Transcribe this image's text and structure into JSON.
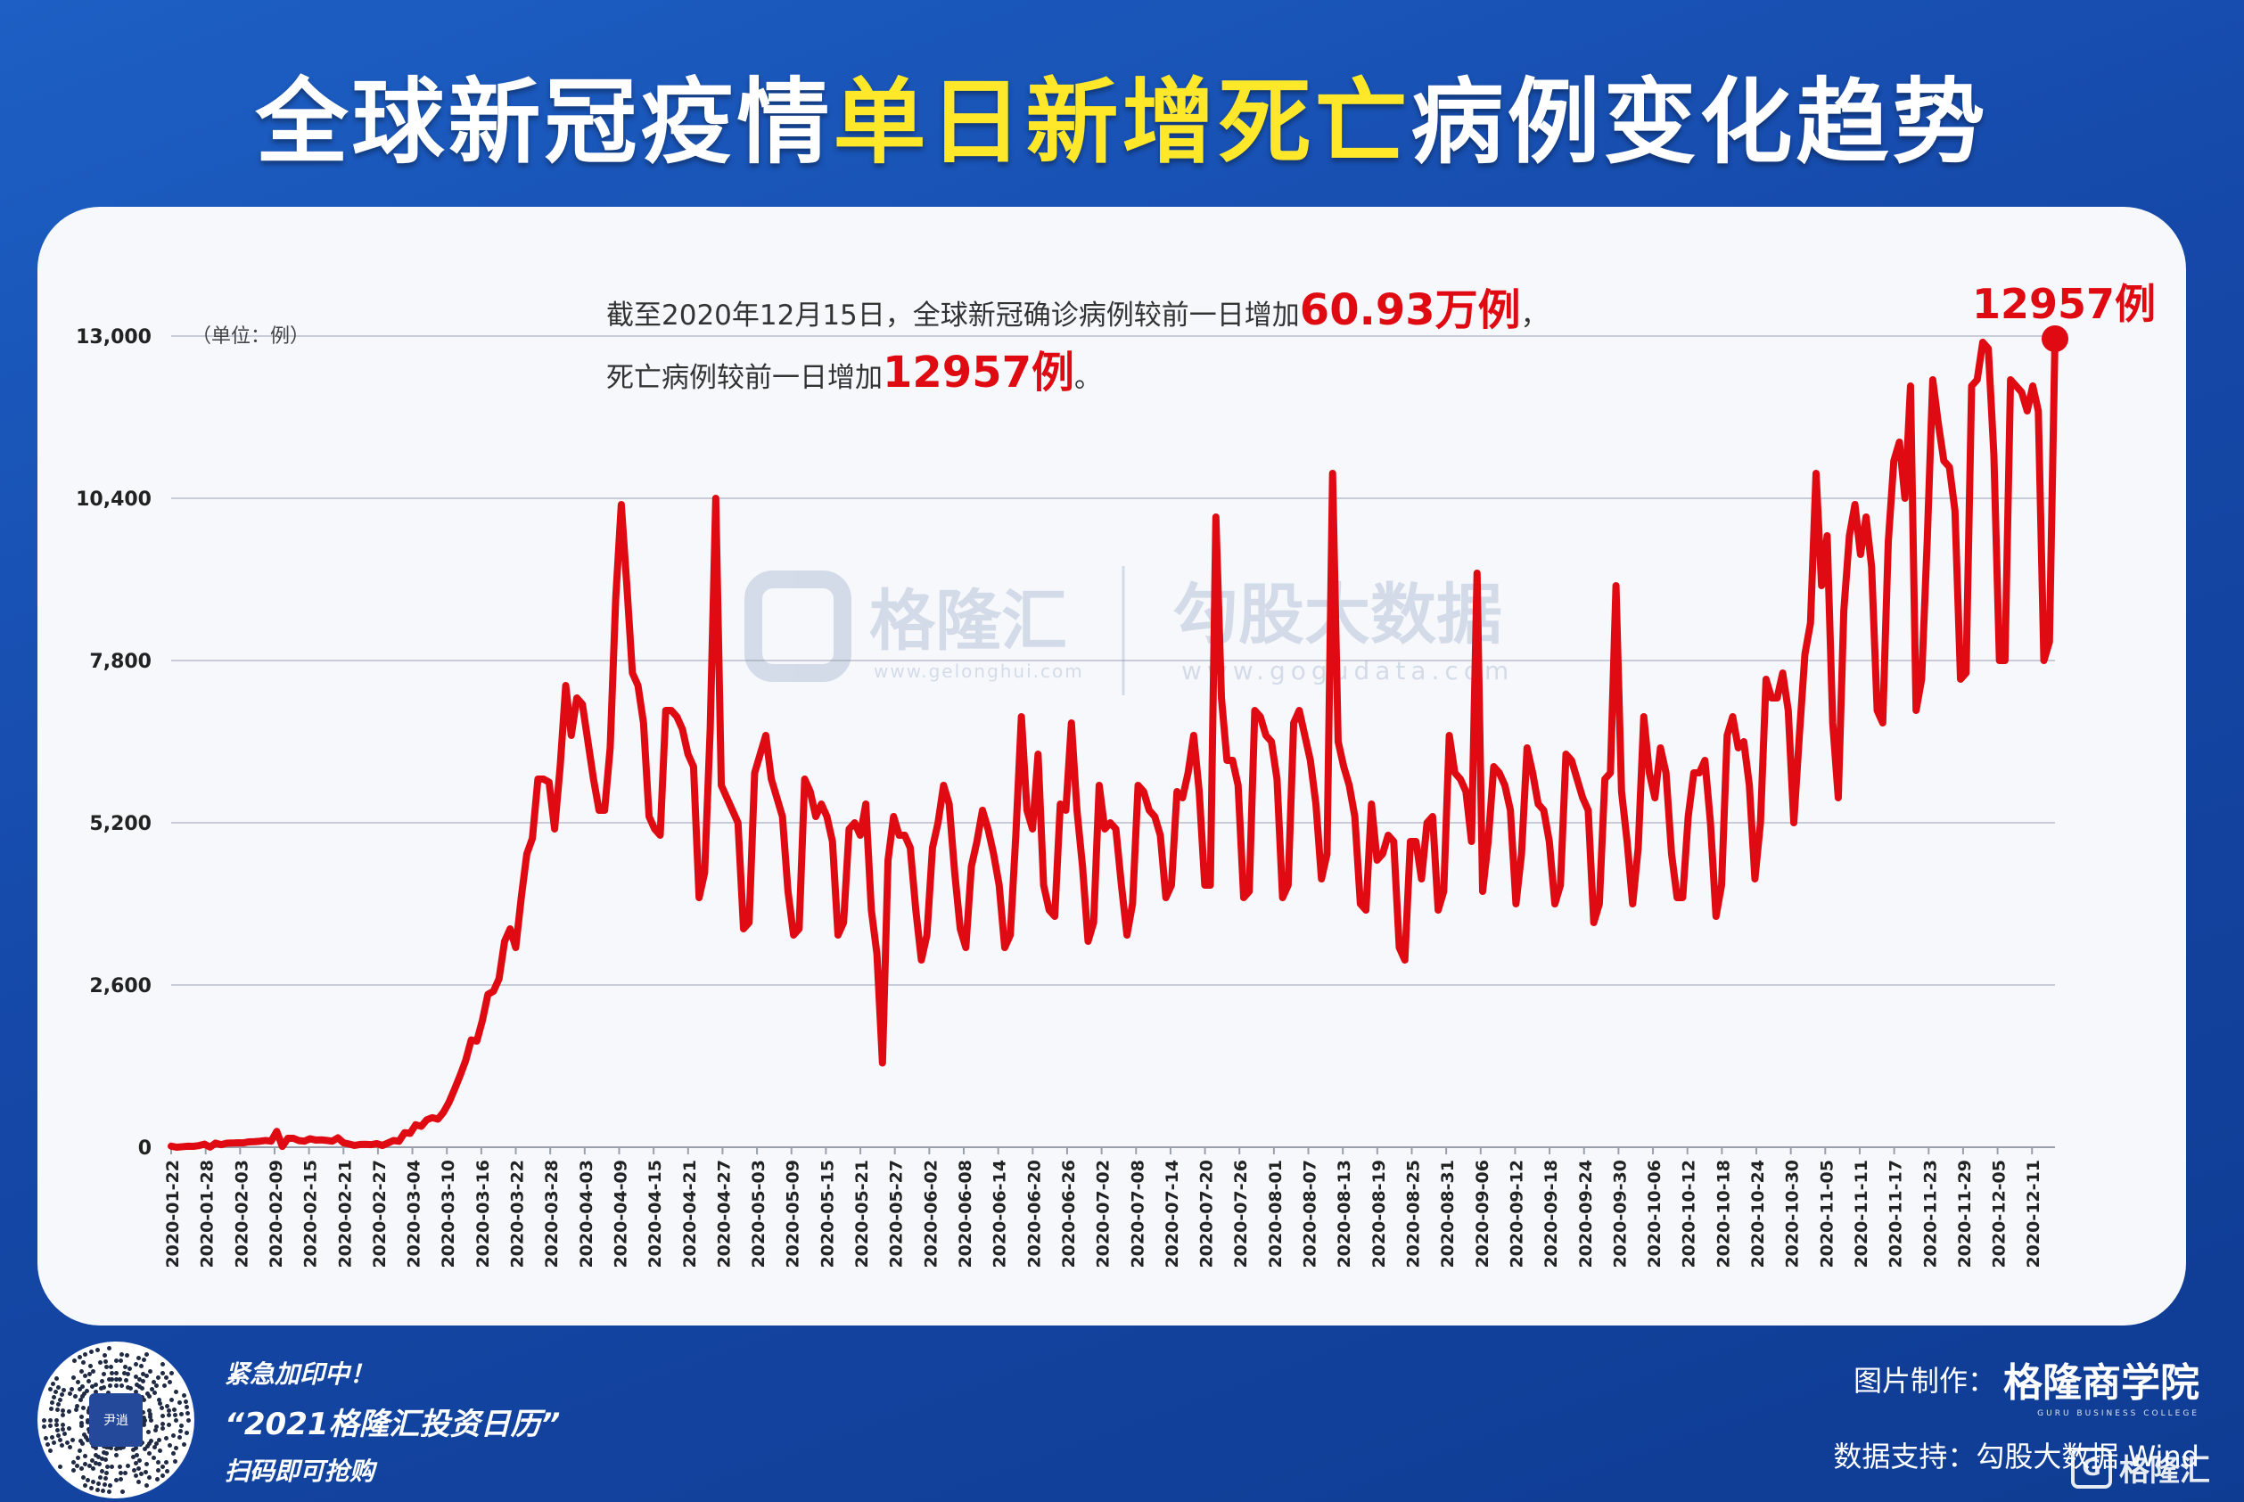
{
  "title": {
    "part1": "全球新冠疫情",
    "highlight": "单日新增死亡",
    "part2": "病例变化趋势"
  },
  "annotation": {
    "line1_prefix": "截至2020年12月15日，全球新冠确诊病例较前一日增加",
    "line1_value": "60.93万例",
    "line1_suffix": "，",
    "line2_prefix": "死亡病例较前一日增加",
    "line2_value": "12957例",
    "line2_suffix": "。"
  },
  "last_point_label": "12957例",
  "unit_label": "（单位：例）",
  "watermark": {
    "brand1": "格隆汇",
    "url1": "www.gelonghui.com",
    "brand2": "勾股大数据",
    "url2": "www.gogudata.com"
  },
  "footer": {
    "promo_line1": "紧急加印中！",
    "promo_line2": "“2021格隆汇投资日历”",
    "promo_line3": "扫码即可抢购",
    "qr_center_text": "尹逍",
    "credit_label": "图片制作：",
    "credit_brand": "格隆商学院",
    "credit_brand_en": "GURU BUSINESS COLLEGE",
    "data_support": "数据支持：勾股大数据  Wind",
    "corner_logo": "格隆汇",
    "corner_logo_glyph": "G"
  },
  "colors": {
    "line": "#e00b12",
    "accent_yellow": "#ffe829",
    "grid": "#c8ccd6",
    "axis_text": "#222222"
  },
  "chart_data": {
    "type": "line",
    "title": "全球新冠疫情单日新增死亡病例变化趋势",
    "ylabel": "（单位：例）",
    "xlabel": "",
    "ylim": [
      0,
      13000
    ],
    "yticks": [
      0,
      2600,
      5200,
      7800,
      10400,
      13000
    ],
    "ytick_labels": [
      "0",
      "2,600",
      "5,200",
      "7,800",
      "10,400",
      "13,000"
    ],
    "x_start": "2020-01-22",
    "x_end": "2020-12-15",
    "xtick_labels": [
      "2020-01-22",
      "2020-01-28",
      "2020-02-03",
      "2020-02-09",
      "2020-02-15",
      "2020-02-21",
      "2020-02-27",
      "2020-03-04",
      "2020-03-10",
      "2020-03-16",
      "2020-03-22",
      "2020-03-28",
      "2020-04-03",
      "2020-04-09",
      "2020-04-15",
      "2020-04-21",
      "2020-04-27",
      "2020-05-03",
      "2020-05-09",
      "2020-05-15",
      "2020-05-21",
      "2020-05-27",
      "2020-06-02",
      "2020-06-08",
      "2020-06-14",
      "2020-06-20",
      "2020-06-26",
      "2020-07-02",
      "2020-07-08",
      "2020-07-14",
      "2020-07-20",
      "2020-07-26",
      "2020-08-01",
      "2020-08-07",
      "2020-08-13",
      "2020-08-19",
      "2020-08-25",
      "2020-08-31",
      "2020-09-06",
      "2020-09-12",
      "2020-09-18",
      "2020-09-24",
      "2020-09-30",
      "2020-10-06",
      "2020-10-12",
      "2020-10-18",
      "2020-10-24",
      "2020-10-30",
      "2020-11-05",
      "2020-11-11",
      "2020-11-17",
      "2020-11-23",
      "2020-11-29",
      "2020-12-05",
      "2020-12-11"
    ],
    "series": [
      {
        "values": [
          17,
          0,
          8,
          16,
          14,
          26,
          49,
          2,
          65,
          41,
          64,
          67,
          72,
          70,
          86,
          89,
          97,
          108,
          97,
          254,
          13,
          143,
          142,
          106,
          98,
          136,
          115,
          118,
          109,
          97,
          150,
          71,
          52,
          29,
          44,
          47,
          41,
          58,
          28,
          67,
          107,
          96,
          232,
          223,
          360,
          335,
          440,
          474,
          450,
          560,
          720,
          930,
          1150,
          1390,
          1720,
          1700,
          2030,
          2450,
          2500,
          2700,
          3300,
          3500,
          3200,
          4000,
          4700,
          4950,
          5900,
          5900,
          5850,
          5100,
          6100,
          7400,
          6600,
          7200,
          7100,
          6500,
          5900,
          5400,
          5400,
          6400,
          8800,
          10300,
          9000,
          7600,
          7400,
          6800,
          5300,
          5100,
          5000,
          7000,
          7000,
          6900,
          6700,
          6300,
          6100,
          4000,
          4400,
          6700,
          10400,
          5800,
          5600,
          5400,
          5200,
          3500,
          3600,
          6000,
          6300,
          6600,
          5900,
          5600,
          5300,
          4100,
          3400,
          3500,
          5900,
          5700,
          5300,
          5500,
          5300,
          4900,
          3400,
          3600,
          5100,
          5200,
          5000,
          5500,
          3800,
          3100,
          1350,
          4600,
          5300,
          5000,
          5000,
          4800,
          3800,
          3000,
          3400,
          4800,
          5200,
          5800,
          5500,
          4400,
          3500,
          3200,
          4500,
          4900,
          5400,
          5100,
          4700,
          4200,
          3200,
          3400,
          5000,
          6900,
          5400,
          5100,
          6300,
          4200,
          3800,
          3700,
          5500,
          5400,
          6800,
          5400,
          4500,
          3300,
          3600,
          5800,
          5100,
          5200,
          5100,
          4200,
          3400,
          3900,
          5800,
          5700,
          5400,
          5300,
          5000,
          4000,
          4200,
          5700,
          5600,
          6000,
          6600,
          5700,
          4200,
          4200,
          10100,
          7200,
          6200,
          6200,
          5800,
          4000,
          4100,
          7000,
          6900,
          6600,
          6500,
          5900,
          4000,
          4200,
          6800,
          7000,
          6600,
          6200,
          5500,
          4300,
          4700,
          10800,
          6500,
          6100,
          5800,
          5300,
          3900,
          3800,
          5500,
          4600,
          4700,
          5000,
          4900,
          3200,
          3000,
          4900,
          4900,
          4300,
          5200,
          5300,
          3800,
          4100,
          6600,
          6000,
          5900,
          5700,
          4900,
          9200,
          4100,
          4900,
          6100,
          6000,
          5800,
          5400,
          3900,
          4700,
          6400,
          6000,
          5500,
          5400,
          4900,
          3900,
          4200,
          6300,
          6200,
          5900,
          5600,
          5400,
          3600,
          3900,
          5900,
          6000,
          9000,
          5700,
          4900,
          3900,
          4800,
          6900,
          6000,
          5600,
          6400,
          6000,
          4700,
          4000,
          4000,
          5300,
          6000,
          6000,
          6200,
          5200,
          3700,
          4200,
          6600,
          6900,
          6400,
          6500,
          5800,
          4300,
          5200,
          7500,
          7200,
          7200,
          7600,
          7000,
          5200,
          6600,
          7900,
          8400,
          10800,
          9000,
          9800,
          6800,
          5600,
          8600,
          9800,
          10300,
          9500,
          10100,
          9300,
          7000,
          6800,
          9700,
          11000,
          11300,
          10400,
          12200,
          7000,
          7500,
          9700,
          12300,
          11600,
          11000,
          10900,
          10200,
          7500,
          7600,
          12200,
          12300,
          12900,
          12800,
          11100,
          7800,
          7800,
          12300,
          12200,
          12100,
          11800,
          12200,
          11800,
          7800,
          8100,
          12957
        ]
      }
    ]
  }
}
